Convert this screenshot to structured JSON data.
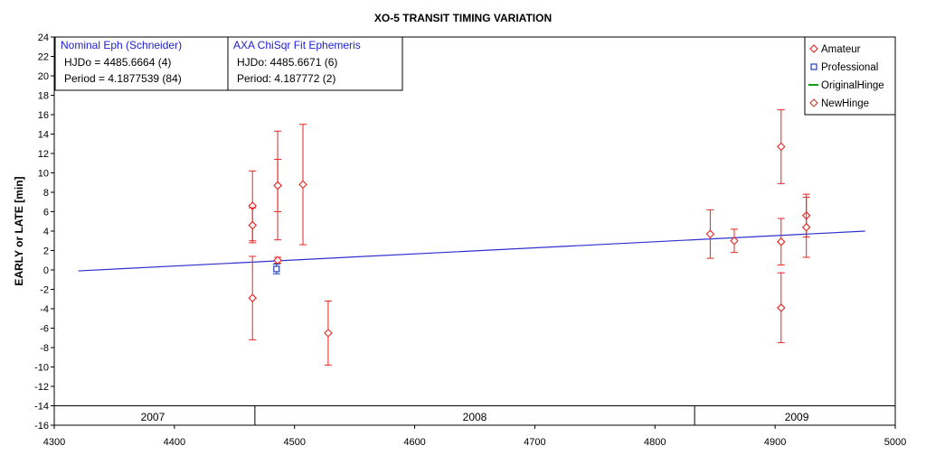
{
  "chart_data": {
    "type": "scatter",
    "title": "XO-5 TRANSIT TIMING VARIATION",
    "xlabel": "",
    "ylabel": "EARLY or LATE [min]",
    "xlim": [
      4300,
      5000
    ],
    "ylim": [
      -16,
      24
    ],
    "x_ticks": [
      4300,
      4400,
      4500,
      4600,
      4700,
      4800,
      4900,
      5000
    ],
    "y_ticks": [
      -16,
      -14,
      -12,
      -10,
      -8,
      -6,
      -4,
      -2,
      0,
      2,
      4,
      6,
      8,
      10,
      12,
      14,
      16,
      18,
      20,
      22,
      24
    ],
    "grid": true,
    "legend_position": "top-right",
    "colors": {
      "amateur": "#e8241f",
      "professional": "#1f3fb8",
      "original_hinge": "#129a12",
      "new_hinge": "#c0392b",
      "ephemeris_line": "#3030d0",
      "box_title": "#2020d0"
    },
    "series": [
      {
        "name": "Amateur",
        "marker": "diamond",
        "points": [
          {
            "x": 4465,
            "y": 6.6,
            "err": 3.6
          },
          {
            "x": 4465,
            "y": 4.6,
            "err": 1.8
          },
          {
            "x": 4465,
            "y": -2.9,
            "err": 4.3
          },
          {
            "x": 4486,
            "y": 8.7,
            "err": 5.6
          },
          {
            "x": 4486,
            "y": 8.7,
            "err": 2.7
          },
          {
            "x": 4486,
            "y": 1.0,
            "err": 0.3
          },
          {
            "x": 4507,
            "y": 8.8,
            "err": 6.2
          },
          {
            "x": 4528,
            "y": -6.5,
            "err": 3.3
          },
          {
            "x": 4846,
            "y": 3.7,
            "err": 2.5
          },
          {
            "x": 4866,
            "y": 3.0,
            "err": 1.2
          },
          {
            "x": 4905,
            "y": 12.7,
            "err": 3.8
          },
          {
            "x": 4905,
            "y": 2.9,
            "err": 2.4
          },
          {
            "x": 4905,
            "y": -3.9,
            "err": 3.6
          },
          {
            "x": 4926,
            "y": 5.6,
            "err": 2.2
          },
          {
            "x": 4926,
            "y": 4.4,
            "err": 3.1
          }
        ]
      },
      {
        "name": "Professional",
        "marker": "square",
        "points": [
          {
            "x": 4485,
            "y": 0.1,
            "err": 0.5
          }
        ]
      },
      {
        "name": "OriginalHinge",
        "marker": "line",
        "points": []
      },
      {
        "name": "NewHinge",
        "marker": "diamond",
        "points": []
      }
    ],
    "ephemeris_line": {
      "x": [
        4320,
        4975
      ],
      "y": [
        -0.1,
        4.0
      ]
    },
    "year_markers": [
      {
        "label": "2007",
        "x_center": 4382,
        "boundary": 4467
      },
      {
        "label": "2008",
        "x_center": 4650,
        "boundary": 4833
      },
      {
        "label": "2009",
        "x_center": 4918
      }
    ],
    "info_boxes": [
      {
        "title": "Nominal Eph (Schneider)",
        "line1": "HJDo = 4485.6664 (4)",
        "line2": "Period = 4.1877539 (84)"
      },
      {
        "title": "AXA ChiSqr Fit Ephemeris",
        "line1": "HJDo:  4485.6671 (6)",
        "line2": "Period: 4.187772 (2)"
      }
    ]
  }
}
